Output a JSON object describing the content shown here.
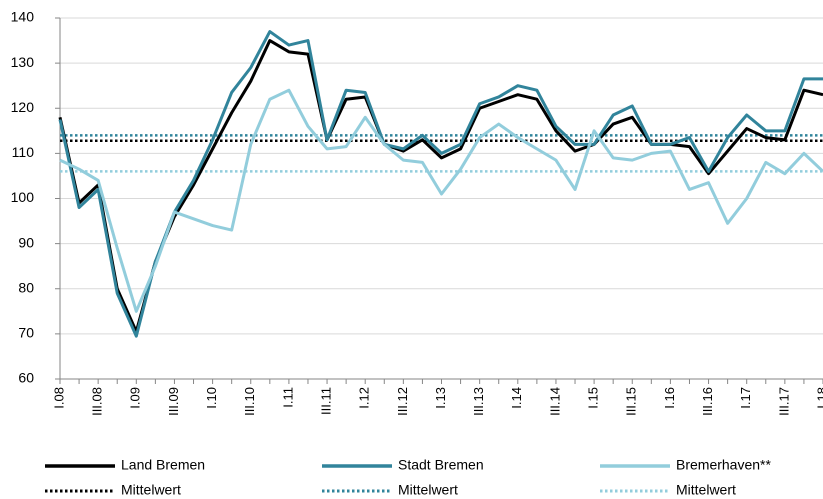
{
  "chart_data": {
    "type": "line",
    "categories": [
      "I.08",
      null,
      "III.08",
      null,
      "I.09",
      null,
      "III.09",
      null,
      "I.10",
      null,
      "III.10",
      null,
      "I.11",
      null,
      "III.11",
      null,
      "I.12",
      null,
      "III.12",
      null,
      "I.13",
      null,
      "III.13",
      null,
      "I.14",
      null,
      "III.14",
      null,
      "I.15",
      null,
      "III.15",
      null,
      "I.16",
      null,
      "III.16",
      null,
      "I.17",
      null,
      "III.17",
      null,
      "I.18"
    ],
    "series": [
      {
        "name": "Land Bremen",
        "color": "#000000",
        "values": [
          118,
          99,
          103,
          80,
          70.5,
          86,
          96,
          103,
          111,
          119,
          126,
          135,
          132.5,
          132,
          113,
          122,
          122.5,
          112,
          110.5,
          113,
          109,
          111,
          120,
          121.5,
          123,
          122,
          115,
          110.5,
          112,
          116.5,
          118,
          112,
          112,
          111.5,
          105.5,
          110.5,
          115.5,
          113.5,
          113,
          124,
          123
        ]
      },
      {
        "name": "Stadt Bremen",
        "color": "#31849b",
        "values": [
          117.5,
          98,
          102,
          79,
          69.5,
          86,
          97,
          104,
          113,
          123.5,
          129,
          137,
          134,
          135,
          113,
          124,
          123.5,
          112,
          111,
          114,
          110,
          112,
          121,
          122.5,
          125,
          124,
          116,
          112,
          112,
          118.5,
          120.5,
          112,
          112,
          113.5,
          106,
          113.5,
          118.5,
          115,
          115,
          126.5,
          126.5
        ]
      },
      {
        "name": "Bremerhaven**",
        "color": "#92cddc",
        "values": [
          108.5,
          106.5,
          104,
          89,
          75,
          85,
          97,
          95.5,
          94,
          93,
          112,
          122,
          124,
          116,
          111,
          111.5,
          118,
          112,
          108.5,
          108,
          101,
          106.5,
          113.5,
          116.5,
          113.5,
          111,
          108.5,
          102,
          115,
          109,
          108.5,
          110,
          110.5,
          102,
          103.5,
          94.5,
          100,
          108,
          105.5,
          110,
          106
        ]
      }
    ],
    "means": [
      {
        "name": "Mittelwert",
        "color": "#000000",
        "value": 112.8
      },
      {
        "name": "Mittelwert",
        "color": "#31849b",
        "value": 114
      },
      {
        "name": "Mittelwert",
        "color": "#92cddc",
        "value": 106
      }
    ],
    "ylim": [
      60,
      140
    ],
    "yticks": [
      60,
      70,
      80,
      90,
      100,
      110,
      120,
      130,
      140
    ],
    "grid": true
  }
}
